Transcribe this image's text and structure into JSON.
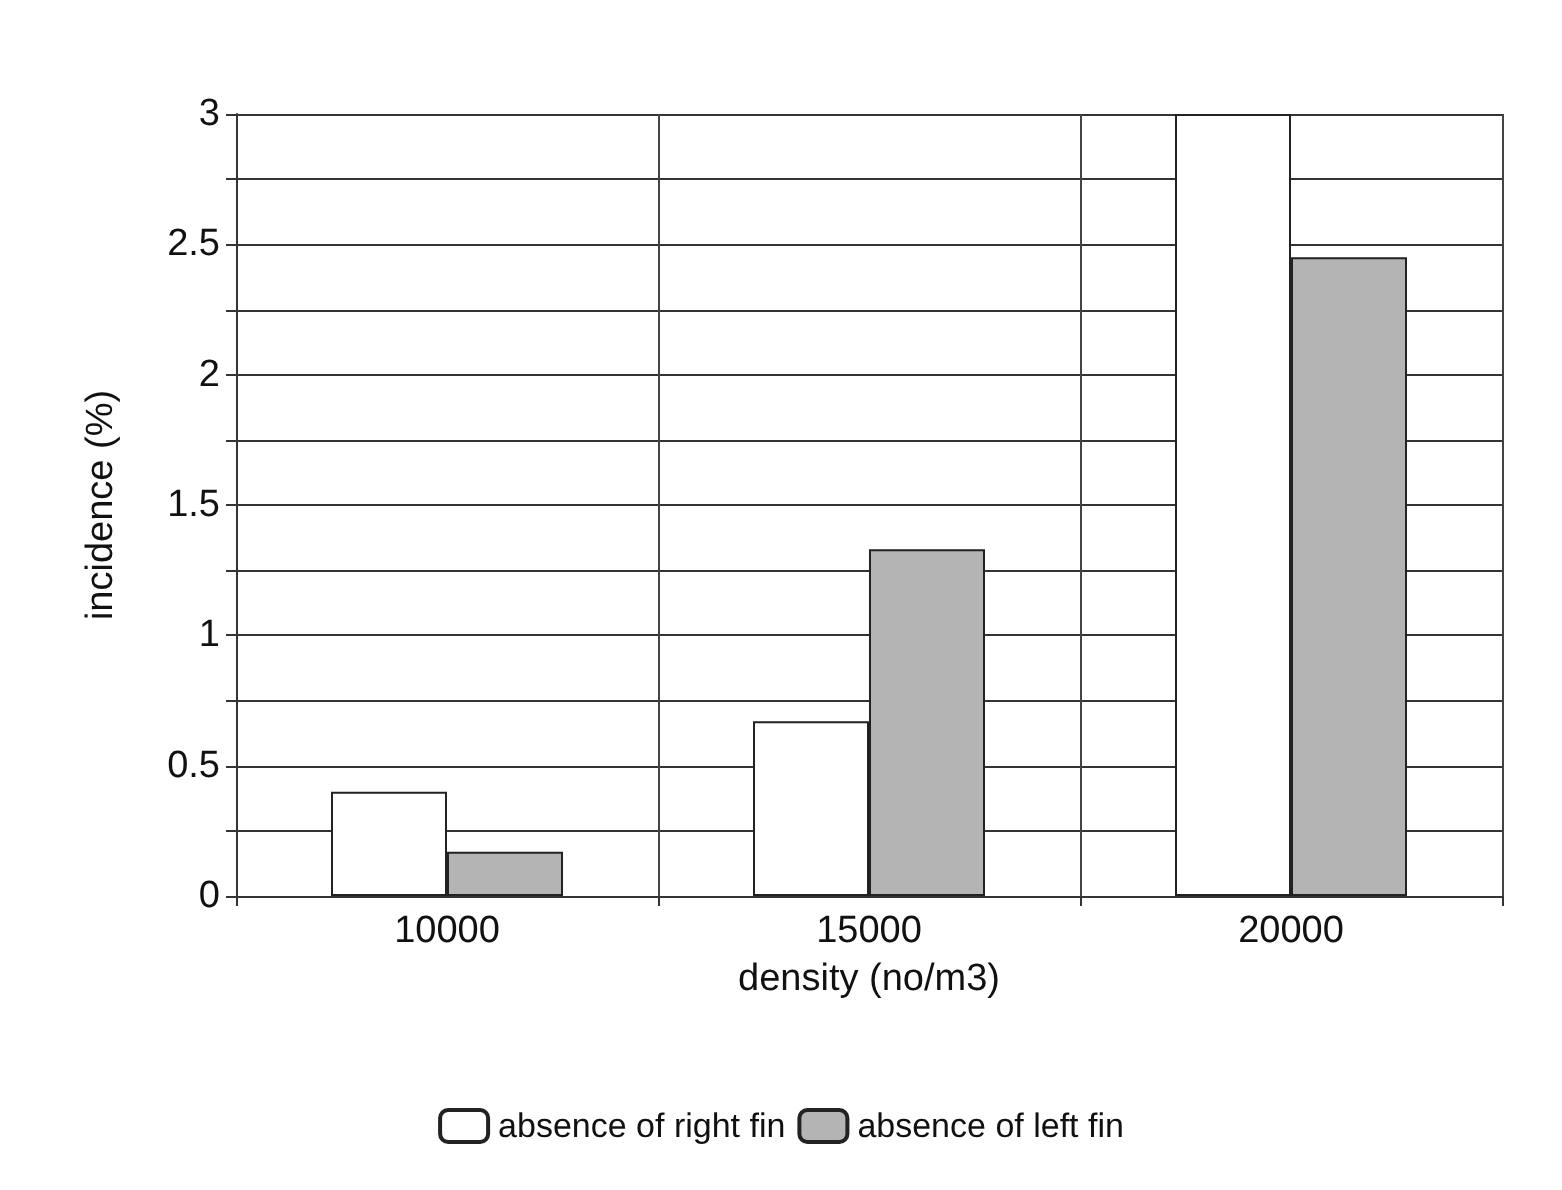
{
  "chart_data": {
    "type": "bar",
    "xlabel": "density (no/m3)",
    "ylabel": "incidence (%)",
    "categories": [
      "10000",
      "15000",
      "20000"
    ],
    "series": [
      {
        "name": "absence of right fin",
        "color": "#ffffff",
        "values": [
          0.4,
          0.67,
          3.0
        ]
      },
      {
        "name": "absence of left fin",
        "color": "#b4b4b4",
        "values": [
          0.17,
          1.33,
          2.45
        ]
      }
    ],
    "ylim": [
      0,
      3
    ],
    "yticks": [
      0,
      {
        "value": 0.25,
        "label": null
      },
      0.5,
      {
        "value": 0.75,
        "label": null
      },
      1,
      {
        "value": 1.25,
        "label": null
      },
      1.5,
      {
        "value": 1.75,
        "label": null
      },
      2,
      {
        "value": 2.25,
        "label": null
      },
      2.5,
      {
        "value": 2.75,
        "label": null
      },
      3
    ],
    "grid": true,
    "legend": "bottom"
  }
}
